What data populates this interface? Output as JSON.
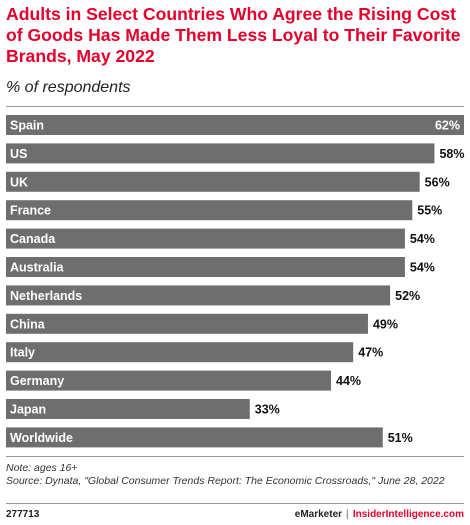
{
  "header": {
    "title": "Adults in Select Countries Who Agree the Rising Cost of Goods Has Made Them Less Loyal to Their Favorite Brands, May 2022",
    "subtitle": "% of respondents"
  },
  "colors": {
    "title": "#e4002b",
    "bar": "#6e6e6e",
    "label_inside": "#ffffff",
    "label_outside": "#111111"
  },
  "chart_data": {
    "type": "bar",
    "orientation": "horizontal",
    "categories": [
      "Spain",
      "US",
      "UK",
      "France",
      "Canada",
      "Australia",
      "Netherlands",
      "China",
      "Italy",
      "Germany",
      "Japan",
      "Worldwide"
    ],
    "values": [
      62,
      58,
      56,
      55,
      54,
      54,
      52,
      49,
      47,
      44,
      33,
      51
    ],
    "value_labels": [
      "62%",
      "58%",
      "56%",
      "55%",
      "54%",
      "54%",
      "52%",
      "49%",
      "47%",
      "44%",
      "33%",
      "51%"
    ],
    "xlim": [
      0,
      62
    ],
    "grid": false,
    "legend": "none"
  },
  "notes": {
    "note": "Note: ages 16+",
    "source": "Source: Dynata, \"Global Consumer Trends Report: The Economic Crossroads,\" June 28, 2022"
  },
  "footer": {
    "id": "277713",
    "brand": "eMarketer",
    "separator": "|",
    "brand2": "InsiderIntelligence.com"
  }
}
